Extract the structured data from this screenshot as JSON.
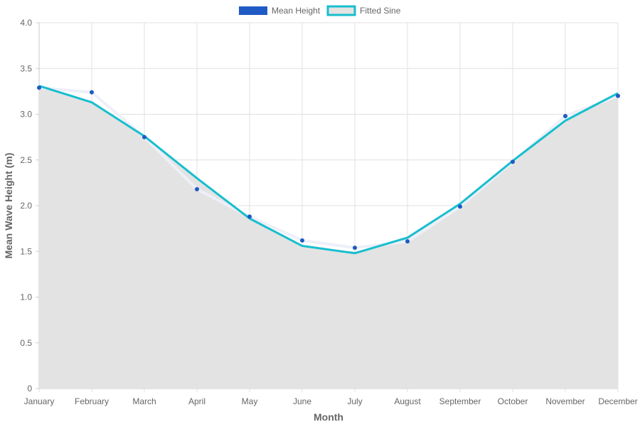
{
  "chart_data": {
    "type": "line",
    "categories": [
      "January",
      "February",
      "March",
      "April",
      "May",
      "June",
      "July",
      "August",
      "September",
      "October",
      "November",
      "December"
    ],
    "series": [
      {
        "name": "Mean Height",
        "values": [
          3.29,
          3.24,
          2.75,
          2.18,
          1.88,
          1.62,
          1.54,
          1.61,
          1.99,
          2.48,
          2.98,
          3.2
        ],
        "color": "#1f5bc4",
        "style": "points with faint connecting line"
      },
      {
        "name": "Fitted Sine",
        "values": [
          3.31,
          3.13,
          2.76,
          2.3,
          1.86,
          1.56,
          1.48,
          1.65,
          2.02,
          2.49,
          2.93,
          3.23
        ],
        "color": "#17becf",
        "fill_color": "#e3e3e3",
        "style": "line with area fill"
      }
    ],
    "title": "",
    "xlabel": "Month",
    "ylabel": "Mean Wave Height (m)",
    "ylim": [
      0,
      4.0
    ],
    "yticks": [
      "0",
      "0.5",
      "1.0",
      "1.5",
      "2.0",
      "2.5",
      "3.0",
      "3.5",
      "4.0"
    ],
    "grid": true,
    "legend_position": "top-center"
  }
}
